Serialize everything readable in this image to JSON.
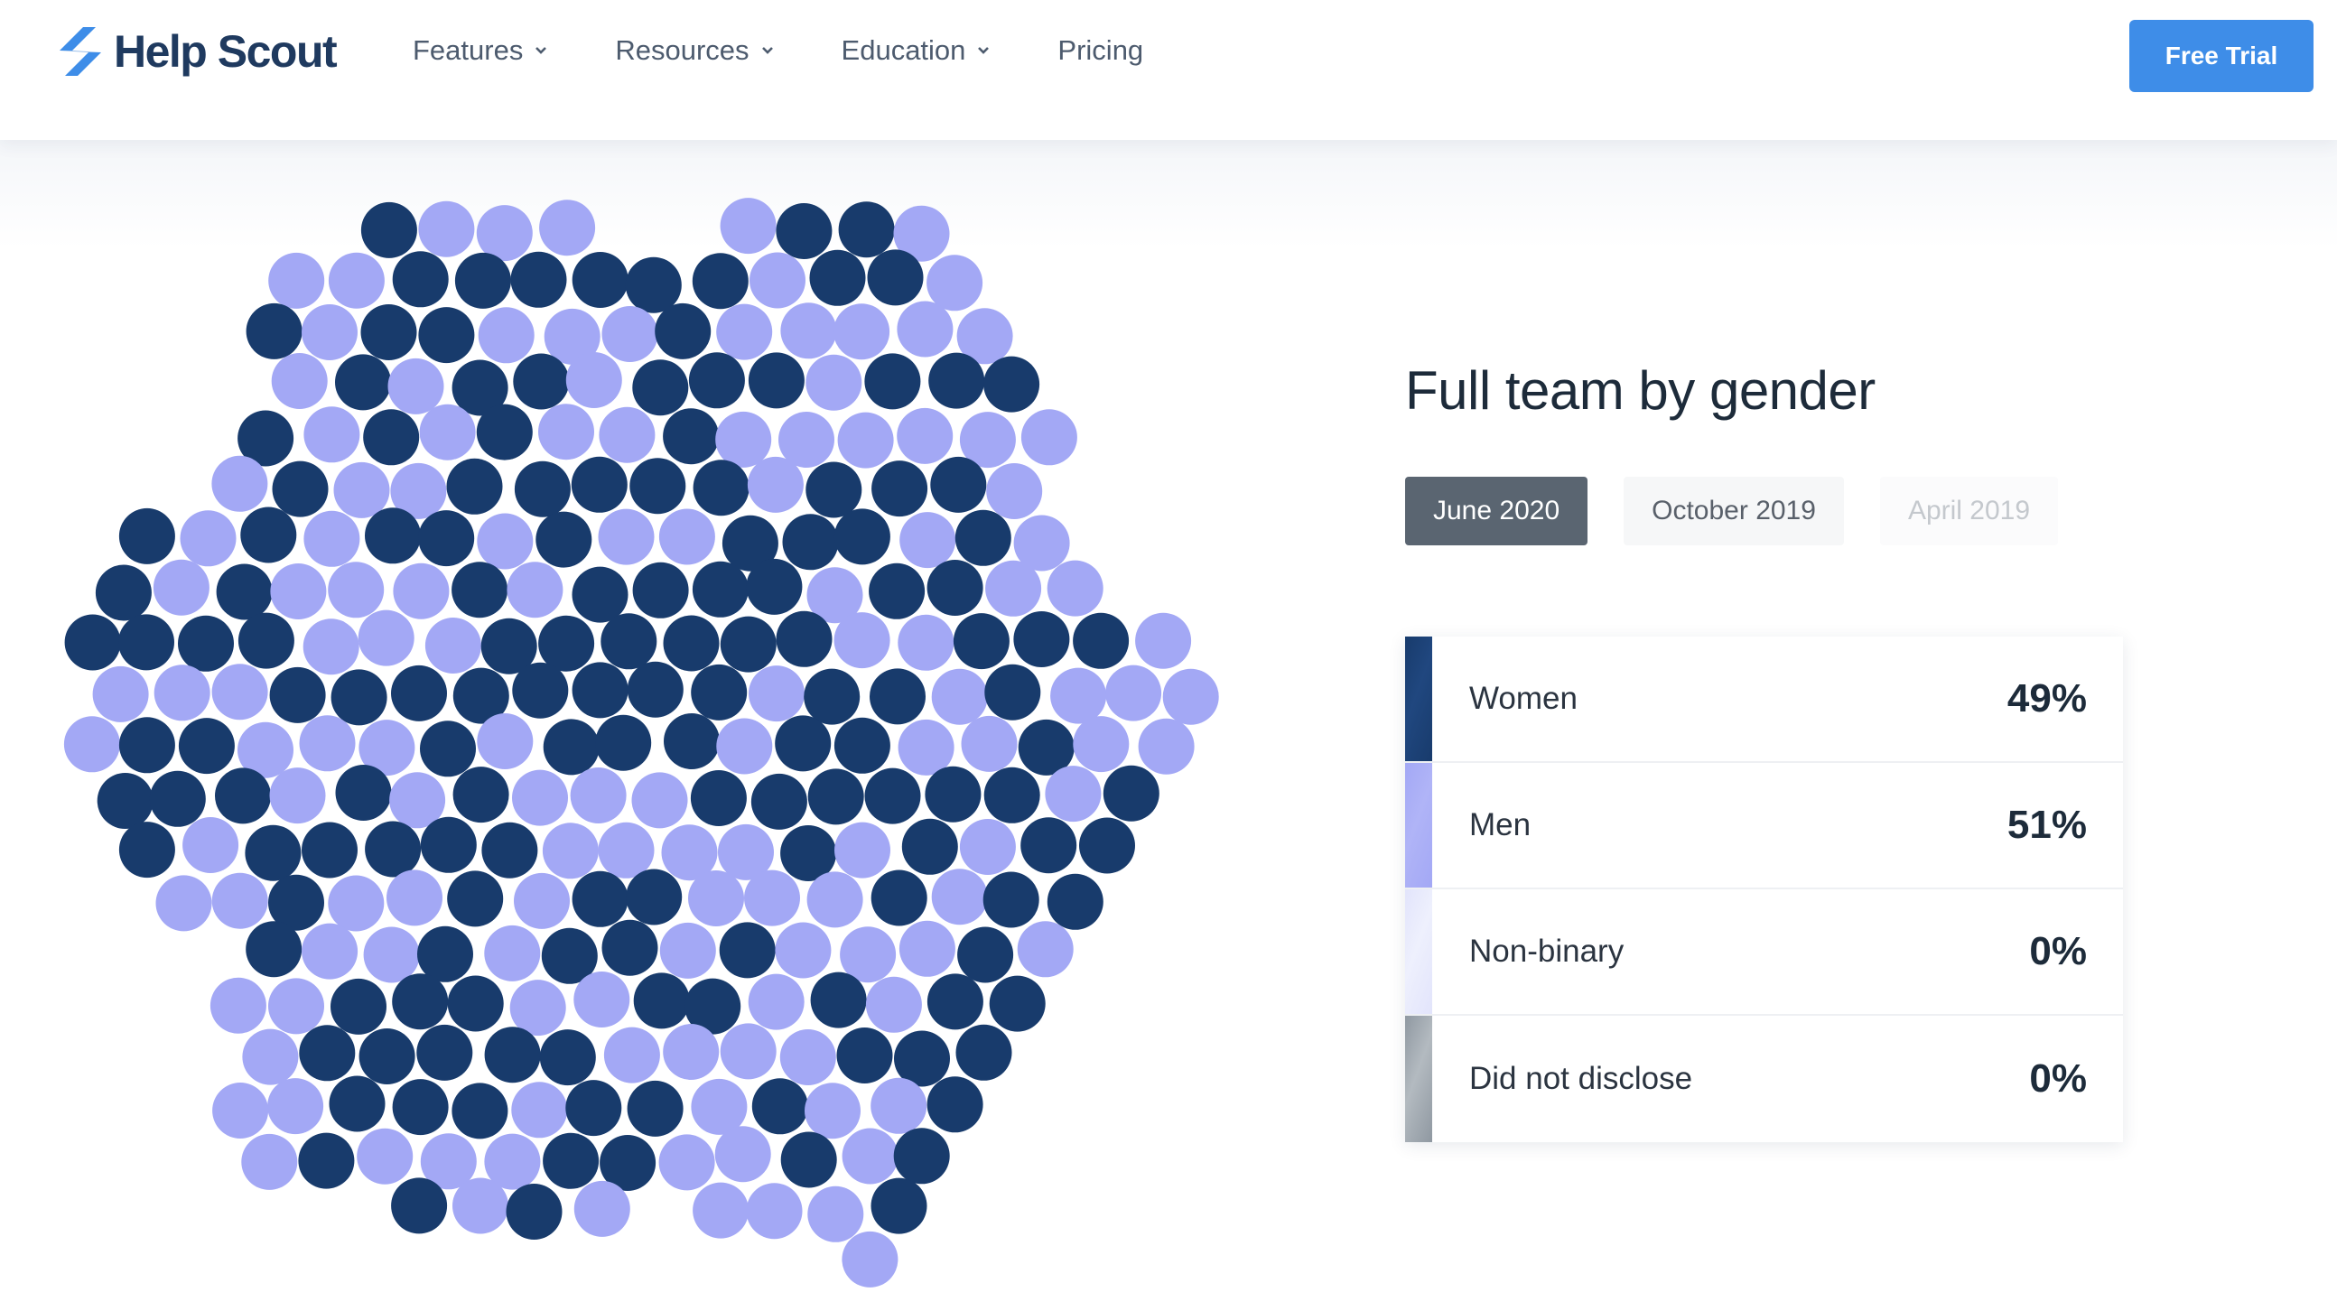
{
  "brand": {
    "name": "Help Scout"
  },
  "nav": {
    "items": [
      {
        "label": "Features",
        "has_dropdown": true
      },
      {
        "label": "Resources",
        "has_dropdown": true
      },
      {
        "label": "Education",
        "has_dropdown": true
      },
      {
        "label": "Pricing",
        "has_dropdown": false
      }
    ],
    "cta": "Free Trial"
  },
  "colors": {
    "dark_dot": "#183b6c",
    "light_dot": "#a3a8f5",
    "cta": "#3e8de8",
    "active_tab": "#5a6571"
  },
  "panel": {
    "title": "Full team by gender",
    "tabs": [
      {
        "label": "June 2020",
        "active": true
      },
      {
        "label": "October 2019",
        "active": false
      },
      {
        "label": "April 2019",
        "active": false
      }
    ],
    "rows": [
      {
        "label": "Women",
        "value": "49%",
        "color": "#183b6c"
      },
      {
        "label": "Men",
        "value": "51%",
        "color": "#a3a8f5"
      },
      {
        "label": "Non-binary",
        "value": "0%",
        "color": "#e2e4fb"
      },
      {
        "label": "Did not disclose",
        "value": "0%",
        "color": "#9aa3ab"
      }
    ]
  },
  "chart_data": {
    "type": "scatter",
    "series": [
      {
        "name": "Women",
        "share": 0.49
      },
      {
        "name": "Men",
        "share": 0.51
      },
      {
        "name": "Non-binary",
        "share": 0
      },
      {
        "name": "Did not disclose",
        "share": 0
      }
    ]
  }
}
